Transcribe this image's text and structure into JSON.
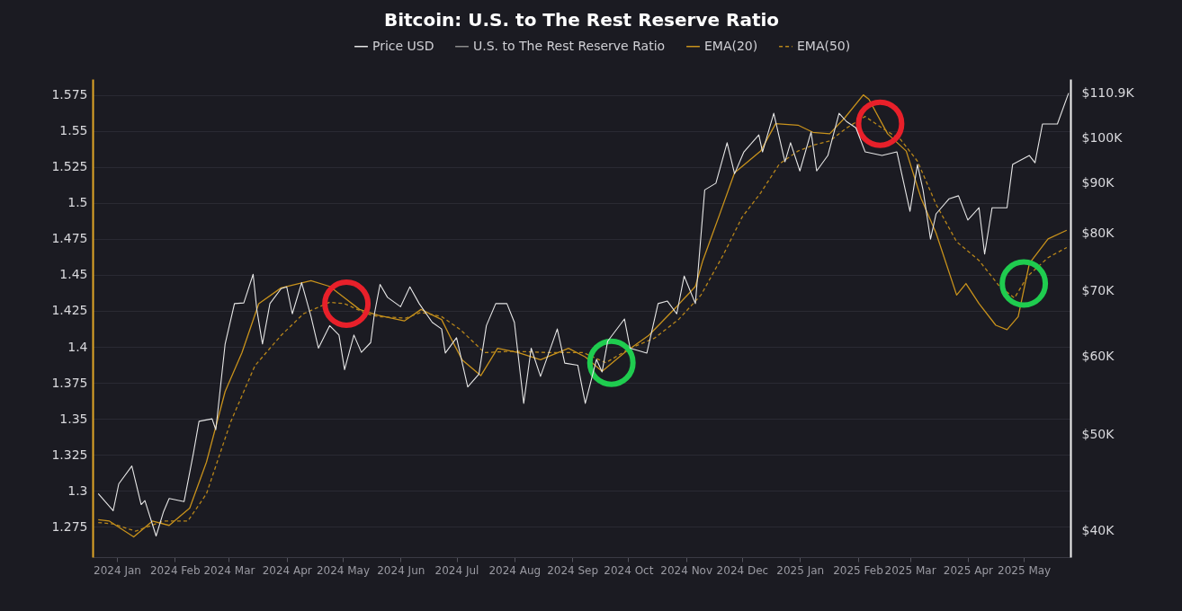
{
  "chart_data": {
    "type": "line",
    "title": "Bitcoin: U.S. to The Rest Reserve Ratio",
    "legend": "top",
    "grid": "y",
    "log": "y2",
    "xlim": [
      "2023-12-19",
      "2025-05-26"
    ],
    "xticks": [
      {
        "value": "2024-01-01",
        "label": "2024 Jan"
      },
      {
        "value": "2024-02-01",
        "label": "2024 Feb"
      },
      {
        "value": "2024-03-01",
        "label": "2024 Mar"
      },
      {
        "value": "2024-04-01",
        "label": "2024 Apr"
      },
      {
        "value": "2024-05-01",
        "label": "2024 May"
      },
      {
        "value": "2024-06-01",
        "label": "2024 Jun"
      },
      {
        "value": "2024-07-01",
        "label": "2024 Jul"
      },
      {
        "value": "2024-08-01",
        "label": "2024 Aug"
      },
      {
        "value": "2024-09-01",
        "label": "2024 Sep"
      },
      {
        "value": "2024-10-01",
        "label": "2024 Oct"
      },
      {
        "value": "2024-11-01",
        "label": "2024 Nov"
      },
      {
        "value": "2024-12-01",
        "label": "2024 Dec"
      },
      {
        "value": "2025-01-01",
        "label": "2025 Jan"
      },
      {
        "value": "2025-02-01",
        "label": "2025 Feb"
      },
      {
        "value": "2025-03-01",
        "label": "2025 Mar"
      },
      {
        "value": "2025-04-01",
        "label": "2025 Apr"
      },
      {
        "value": "2025-05-01",
        "label": "2025 May"
      }
    ],
    "ylim": [
      1.254,
      1.586
    ],
    "yticks": [
      1.275,
      1.3,
      1.325,
      1.35,
      1.375,
      1.4,
      1.425,
      1.45,
      1.475,
      1.5,
      1.525,
      1.55,
      1.575
    ],
    "y2lim": [
      37600,
      114600
    ],
    "y2ticks": [
      {
        "value": 40000,
        "label": "$40K"
      },
      {
        "value": 50000,
        "label": "$50K"
      },
      {
        "value": 60000,
        "label": "$60K"
      },
      {
        "value": 70000,
        "label": "$70K"
      },
      {
        "value": 80000,
        "label": "$80K"
      },
      {
        "value": 90000,
        "label": "$90K"
      },
      {
        "value": 100000,
        "label": "$100K"
      },
      {
        "value": 110900,
        "label": "$110.9K"
      }
    ],
    "series": [
      {
        "name": "Price USD",
        "color": "#e6e6e6",
        "axis": "y2",
        "line_style": "solid",
        "x": [
          "2023-12-22",
          "2023-12-30",
          "2024-01-02",
          "2024-01-09",
          "2024-01-14",
          "2024-01-16",
          "2024-01-22",
          "2024-01-26",
          "2024-01-29",
          "2024-02-06",
          "2024-02-11",
          "2024-02-14",
          "2024-02-21",
          "2024-02-23",
          "2024-02-28",
          "2024-03-04",
          "2024-03-09",
          "2024-03-14",
          "2024-03-16",
          "2024-03-19",
          "2024-03-23",
          "2024-03-29",
          "2024-04-01",
          "2024-04-04",
          "2024-04-09",
          "2024-04-14",
          "2024-04-18",
          "2024-04-24",
          "2024-04-29",
          "2024-05-02",
          "2024-05-07",
          "2024-05-11",
          "2024-05-16",
          "2024-05-18",
          "2024-05-21",
          "2024-05-25",
          "2024-06-01",
          "2024-06-06",
          "2024-06-11",
          "2024-06-18",
          "2024-06-23",
          "2024-06-25",
          "2024-07-01",
          "2024-07-07",
          "2024-07-13",
          "2024-07-17",
          "2024-07-22",
          "2024-07-28",
          "2024-08-01",
          "2024-08-06",
          "2024-08-10",
          "2024-08-15",
          "2024-08-24",
          "2024-08-28",
          "2024-09-04",
          "2024-09-08",
          "2024-09-14",
          "2024-09-17",
          "2024-09-20",
          "2024-09-29",
          "2024-10-02",
          "2024-10-11",
          "2024-10-17",
          "2024-10-22",
          "2024-10-27",
          "2024-10-31",
          "2024-11-06",
          "2024-11-11",
          "2024-11-17",
          "2024-11-23",
          "2024-11-27",
          "2024-12-02",
          "2024-12-10",
          "2024-12-12",
          "2024-12-18",
          "2024-12-24",
          "2024-12-27",
          "2025-01-01",
          "2025-01-07",
          "2025-01-10",
          "2025-01-16",
          "2025-01-22",
          "2025-01-26",
          "2025-01-31",
          "2025-02-05",
          "2025-02-14",
          "2025-02-22",
          "2025-03-01",
          "2025-03-05",
          "2025-03-08",
          "2025-03-12",
          "2025-03-15",
          "2025-03-22",
          "2025-03-27",
          "2025-04-01",
          "2025-04-07",
          "2025-04-10",
          "2025-04-14",
          "2025-04-22",
          "2025-04-25",
          "2025-05-04",
          "2025-05-07",
          "2025-05-11",
          "2025-05-19",
          "2025-05-25"
        ],
        "values": [
          43600,
          41900,
          44600,
          46500,
          42500,
          42900,
          39500,
          41800,
          43100,
          42800,
          47900,
          51600,
          51900,
          50600,
          61800,
          67900,
          68000,
          72700,
          66900,
          61800,
          67900,
          70300,
          70600,
          66300,
          71300,
          65900,
          61200,
          64500,
          63100,
          58200,
          63100,
          60600,
          62000,
          66300,
          71000,
          68900,
          67400,
          70600,
          67900,
          65000,
          64000,
          60500,
          62700,
          55900,
          57600,
          64500,
          67900,
          67900,
          65000,
          53800,
          61200,
          57300,
          64000,
          59100,
          58800,
          53800,
          59600,
          57900,
          62200,
          65500,
          61200,
          60500,
          67900,
          68300,
          66300,
          72400,
          67900,
          88500,
          89900,
          98800,
          91900,
          96700,
          100600,
          96700,
          105800,
          94500,
          98800,
          92500,
          101300,
          92500,
          95900,
          105800,
          103800,
          102300,
          96700,
          95900,
          96700,
          84200,
          93900,
          88500,
          78900,
          83700,
          86700,
          87300,
          82500,
          84900,
          76200,
          84900,
          84900,
          93900,
          95900,
          94300,
          103200,
          103200,
          110900
        ]
      },
      {
        "name": "U.S. to The Rest Reserve Ratio",
        "color": "#8c8c8c",
        "axis": "y",
        "line_style": "solid"
      },
      {
        "name": "EMA(20)",
        "color": "#c8921c",
        "axis": "y",
        "line_style": "solid",
        "x": [
          "2023-12-22",
          "2023-12-28",
          "2024-01-10",
          "2024-01-20",
          "2024-01-29",
          "2024-02-09",
          "2024-02-18",
          "2024-02-28",
          "2024-03-08",
          "2024-03-17",
          "2024-03-29",
          "2024-04-14",
          "2024-04-24",
          "2024-05-02",
          "2024-05-10",
          "2024-05-20",
          "2024-06-03",
          "2024-06-12",
          "2024-06-23",
          "2024-06-28",
          "2024-07-04",
          "2024-07-14",
          "2024-07-23",
          "2024-08-03",
          "2024-08-15",
          "2024-08-30",
          "2024-09-08",
          "2024-09-17",
          "2024-09-29",
          "2024-10-12",
          "2024-10-27",
          "2024-11-06",
          "2024-11-10",
          "2024-11-19",
          "2024-11-27",
          "2024-12-11",
          "2024-12-19",
          "2024-12-31",
          "2025-01-08",
          "2025-01-17",
          "2025-01-25",
          "2025-02-04",
          "2025-02-07",
          "2025-02-17",
          "2025-02-27",
          "2025-03-07",
          "2025-03-15",
          "2025-03-26",
          "2025-03-31",
          "2025-04-07",
          "2025-04-16",
          "2025-04-22",
          "2025-04-28",
          "2025-05-04",
          "2025-05-14",
          "2025-05-24"
        ],
        "values": [
          1.28,
          1.279,
          1.268,
          1.279,
          1.276,
          1.288,
          1.32,
          1.369,
          1.396,
          1.43,
          1.441,
          1.446,
          1.442,
          1.434,
          1.426,
          1.422,
          1.418,
          1.426,
          1.419,
          1.406,
          1.391,
          1.38,
          1.399,
          1.396,
          1.391,
          1.399,
          1.393,
          1.383,
          1.396,
          1.408,
          1.428,
          1.442,
          1.46,
          1.492,
          1.521,
          1.536,
          1.555,
          1.554,
          1.549,
          1.548,
          1.559,
          1.575,
          1.572,
          1.548,
          1.536,
          1.503,
          1.479,
          1.436,
          1.444,
          1.43,
          1.415,
          1.412,
          1.421,
          1.458,
          1.475,
          1.481
        ]
      },
      {
        "name": "EMA(50)",
        "color": "#b8861a",
        "axis": "y",
        "line_style": "dashed",
        "x": [
          "2023-12-22",
          "2023-12-30",
          "2024-01-11",
          "2024-01-26",
          "2024-02-08",
          "2024-02-18",
          "2024-03-02",
          "2024-03-15",
          "2024-03-29",
          "2024-04-10",
          "2024-04-24",
          "2024-05-02",
          "2024-05-14",
          "2024-05-20",
          "2024-06-04",
          "2024-06-12",
          "2024-06-23",
          "2024-07-03",
          "2024-07-16",
          "2024-07-31",
          "2024-08-20",
          "2024-09-07",
          "2024-09-19",
          "2024-10-02",
          "2024-10-15",
          "2024-10-28",
          "2024-11-09",
          "2024-11-21",
          "2024-12-01",
          "2024-12-11",
          "2024-12-21",
          "2024-12-31",
          "2025-01-08",
          "2025-01-17",
          "2025-01-26",
          "2025-02-05",
          "2025-02-14",
          "2025-02-24",
          "2025-03-05",
          "2025-03-15",
          "2025-03-26",
          "2025-04-07",
          "2025-04-18",
          "2025-04-26",
          "2025-05-03",
          "2025-05-14",
          "2025-05-24"
        ],
        "values": [
          1.278,
          1.277,
          1.272,
          1.279,
          1.279,
          1.298,
          1.348,
          1.387,
          1.408,
          1.423,
          1.431,
          1.43,
          1.423,
          1.421,
          1.42,
          1.424,
          1.421,
          1.412,
          1.396,
          1.397,
          1.396,
          1.396,
          1.389,
          1.399,
          1.406,
          1.419,
          1.436,
          1.464,
          1.49,
          1.507,
          1.527,
          1.536,
          1.54,
          1.543,
          1.552,
          1.56,
          1.552,
          1.544,
          1.529,
          1.499,
          1.473,
          1.46,
          1.442,
          1.434,
          1.449,
          1.462,
          1.469
        ]
      }
    ]
  }
}
